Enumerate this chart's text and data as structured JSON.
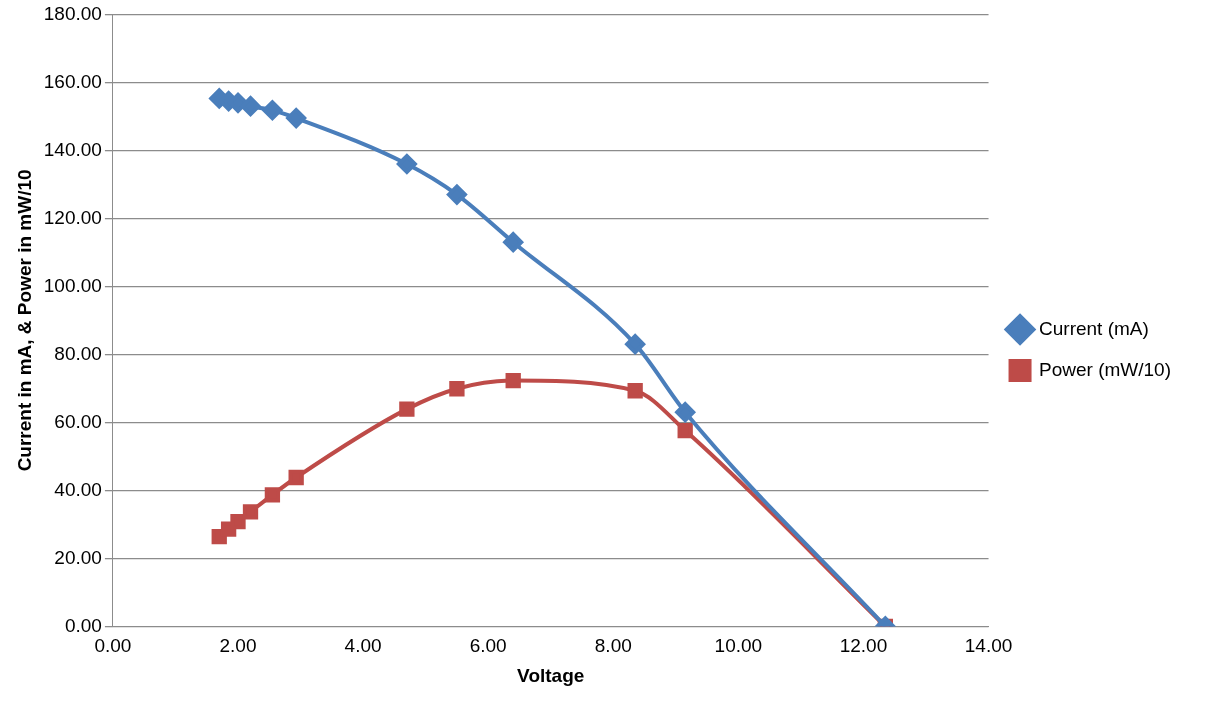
{
  "chart_data": {
    "type": "line",
    "xlabel": "Voltage",
    "ylabel": "Current in mA, & Power in mW/10",
    "x": [
      1.7,
      1.85,
      2.0,
      2.2,
      2.55,
      2.93,
      4.7,
      5.5,
      6.4,
      8.35,
      9.15,
      12.35
    ],
    "series": [
      {
        "name": "Current (mA)",
        "color": "#4a7ebb",
        "marker": "diamond",
        "values": [
          155.3,
          154.5,
          154.0,
          153.0,
          151.8,
          149.5,
          136,
          127,
          113,
          83,
          63,
          0
        ]
      },
      {
        "name": "Power (mW/10)",
        "color": "#be4b48",
        "marker": "square",
        "values": [
          26.4,
          28.6,
          30.8,
          33.7,
          38.7,
          43.8,
          63.9,
          69.9,
          72.3,
          69.3,
          57.6,
          0
        ]
      }
    ],
    "xlim": [
      0,
      14
    ],
    "xticks": [
      {
        "value": 0,
        "label": "0.00"
      },
      {
        "value": 2,
        "label": "2.00"
      },
      {
        "value": 4,
        "label": "4.00"
      },
      {
        "value": 6,
        "label": "6.00"
      },
      {
        "value": 8,
        "label": "8.00"
      },
      {
        "value": 10,
        "label": "10.00"
      },
      {
        "value": 12,
        "label": "12.00"
      },
      {
        "value": 14,
        "label": "14.00"
      }
    ],
    "ylim": [
      0,
      180
    ],
    "yticks": [
      {
        "value": 0,
        "label": "0.00"
      },
      {
        "value": 20,
        "label": "20.00"
      },
      {
        "value": 40,
        "label": "40.00"
      },
      {
        "value": 60,
        "label": "60.00"
      },
      {
        "value": 80,
        "label": "80.00"
      },
      {
        "value": 100,
        "label": "100.00"
      },
      {
        "value": 120,
        "label": "120.00"
      },
      {
        "value": 140,
        "label": "140.00"
      },
      {
        "value": 160,
        "label": "160.00"
      },
      {
        "value": 180,
        "label": "180.00"
      }
    ],
    "grid": "y",
    "legend": "right",
    "line_style": "solid"
  }
}
